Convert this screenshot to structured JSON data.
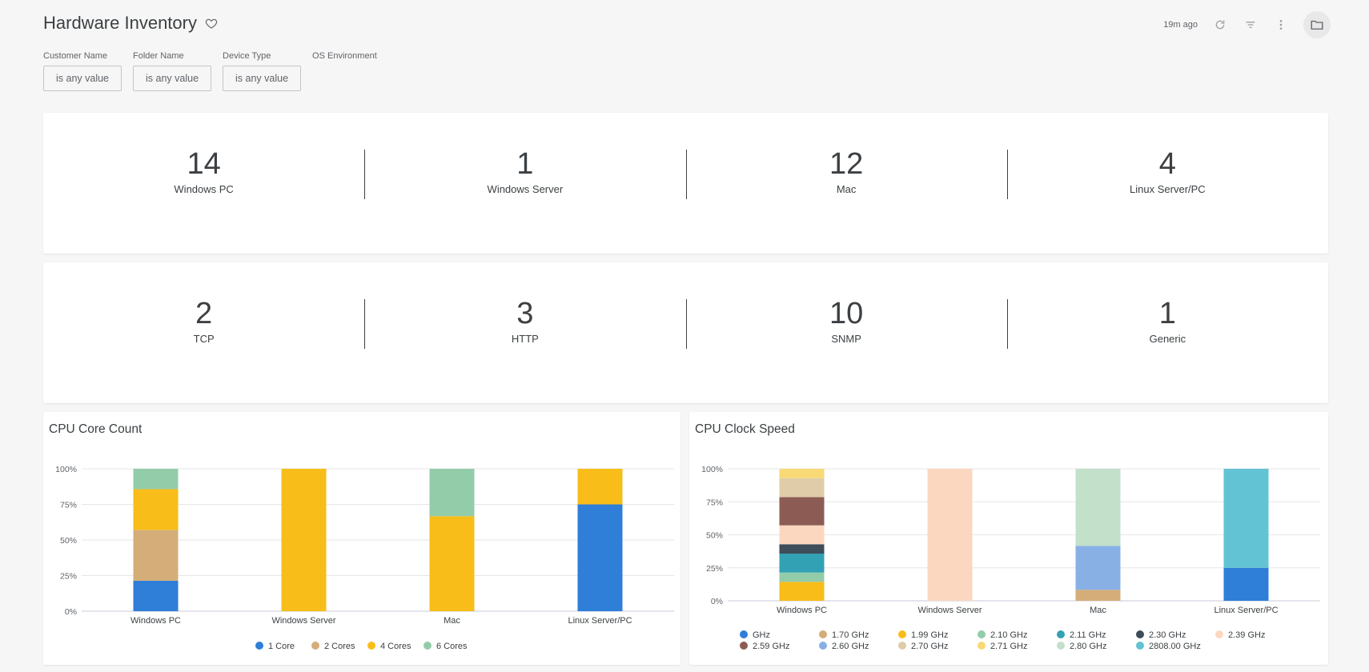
{
  "header": {
    "title": "Hardware Inventory",
    "last_updated": "19m ago"
  },
  "filters": [
    {
      "label": "Customer Name",
      "value": "is any value"
    },
    {
      "label": "Folder Name",
      "value": "is any value"
    },
    {
      "label": "Device Type",
      "value": "is any value"
    },
    {
      "label": "OS Environment",
      "value": ""
    }
  ],
  "os_counts": [
    {
      "value": "14",
      "label": "Windows PC"
    },
    {
      "value": "1",
      "label": "Windows Server"
    },
    {
      "value": "12",
      "label": "Mac"
    },
    {
      "value": "4",
      "label": "Linux Server/PC"
    }
  ],
  "monitor_counts": [
    {
      "value": "2",
      "label": "TCP"
    },
    {
      "value": "3",
      "label": "HTTP"
    },
    {
      "value": "10",
      "label": "SNMP"
    },
    {
      "value": "1",
      "label": "Generic"
    }
  ],
  "chart_data": [
    {
      "title": "CPU Core Count",
      "type": "bar",
      "stacked": "percent",
      "categories": [
        "Windows PC",
        "Windows Server",
        "Mac",
        "Linux Server/PC"
      ],
      "y_ticks": [
        "0%",
        "25%",
        "50%",
        "75%",
        "100%"
      ],
      "ylim": [
        0,
        100
      ],
      "legend_position": "bottom",
      "series": [
        {
          "name": "1 Core",
          "color": "#2f7ed8",
          "values": [
            21.4,
            0,
            0,
            75
          ]
        },
        {
          "name": "2 Cores",
          "color": "#d4ad78",
          "values": [
            35.7,
            0,
            0,
            0
          ]
        },
        {
          "name": "4 Cores",
          "color": "#f8bd19",
          "values": [
            28.6,
            100,
            66.7,
            25
          ]
        },
        {
          "name": "6 Cores",
          "color": "#93cca9",
          "values": [
            14.3,
            0,
            33.3,
            0
          ]
        }
      ]
    },
    {
      "title": "CPU Clock Speed",
      "type": "bar",
      "stacked": "percent",
      "categories": [
        "Windows PC",
        "Windows Server",
        "Mac",
        "Linux Server/PC"
      ],
      "y_ticks": [
        "0%",
        "25%",
        "50%",
        "75%",
        "100%"
      ],
      "ylim": [
        0,
        100
      ],
      "legend_position": "bottom",
      "series": [
        {
          "name": "GHz",
          "color": "#2f7ed8",
          "values": [
            0,
            0,
            0,
            25
          ]
        },
        {
          "name": "1.70 GHz",
          "color": "#d4ad78",
          "values": [
            0,
            0,
            8.3,
            0
          ]
        },
        {
          "name": "1.99 GHz",
          "color": "#f8bd19",
          "values": [
            14.3,
            0,
            0,
            0
          ]
        },
        {
          "name": "2.10 GHz",
          "color": "#93cca9",
          "values": [
            7.1,
            0,
            0,
            0
          ]
        },
        {
          "name": "2.11 GHz",
          "color": "#33a1b4",
          "values": [
            14.3,
            0,
            0,
            0
          ]
        },
        {
          "name": "2.30 GHz",
          "color": "#3d4d5a",
          "values": [
            7.1,
            0,
            0,
            0
          ]
        },
        {
          "name": "2.39 GHz",
          "color": "#fcd7bf",
          "values": [
            14.3,
            100,
            0,
            0
          ]
        },
        {
          "name": "2.59 GHz",
          "color": "#8c5c54",
          "values": [
            21.4,
            0,
            0,
            0
          ]
        },
        {
          "name": "2.60 GHz",
          "color": "#88b0e4",
          "values": [
            0,
            0,
            33.3,
            0
          ]
        },
        {
          "name": "2.70 GHz",
          "color": "#e0cca8",
          "values": [
            14.3,
            0,
            0,
            0
          ]
        },
        {
          "name": "2.71 GHz",
          "color": "#f8d976",
          "values": [
            7.1,
            0,
            0,
            0
          ]
        },
        {
          "name": "2.80 GHz",
          "color": "#c2e0ca",
          "values": [
            0,
            0,
            58.3,
            0
          ]
        },
        {
          "name": "2808.00 GHz",
          "color": "#62c3d4",
          "values": [
            0,
            0,
            0,
            75
          ]
        }
      ]
    }
  ]
}
